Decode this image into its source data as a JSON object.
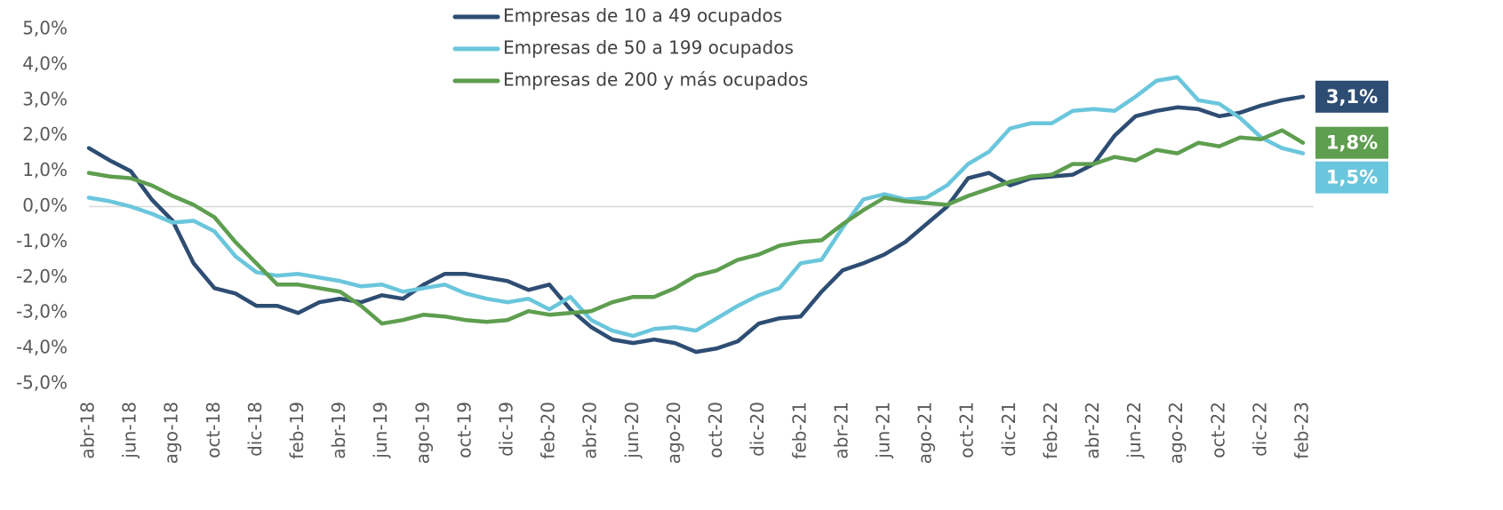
{
  "chart_data": {
    "type": "line",
    "categories": [
      "abr-18",
      null,
      "jun-18",
      null,
      "ago-18",
      null,
      "oct-18",
      null,
      "dic-18",
      null,
      "feb-19",
      null,
      "abr-19",
      null,
      "jun-19",
      null,
      "ago-19",
      null,
      "oct-19",
      null,
      "dic-19",
      null,
      "feb-20",
      null,
      "abr-20",
      null,
      "jun-20",
      null,
      "ago-20",
      null,
      "oct-20",
      null,
      "dic-20",
      null,
      "feb-21",
      null,
      "abr-21",
      null,
      "jun-21",
      null,
      "ago-21",
      null,
      "oct-21",
      null,
      "dic-21",
      null,
      "feb-22",
      null,
      "abr-22",
      null,
      "jun-22",
      null,
      "ago-22",
      null,
      "oct-22",
      null,
      "dic-22",
      null,
      "feb-23"
    ],
    "series": [
      {
        "name": "Empresas de 10 a 49 ocupados",
        "color": "#2e4d73",
        "values": [
          1.65,
          1.3,
          1.0,
          0.2,
          -0.4,
          -1.6,
          -2.3,
          -2.45,
          -2.8,
          -2.8,
          -3.0,
          -2.7,
          -2.6,
          -2.7,
          -2.5,
          -2.6,
          -2.2,
          -1.9,
          -1.9,
          -2.0,
          -2.1,
          -2.35,
          -2.2,
          -2.9,
          -3.4,
          -3.75,
          -3.85,
          -3.75,
          -3.85,
          -4.1,
          -4.0,
          -3.8,
          -3.3,
          -3.15,
          -3.1,
          -2.4,
          -1.8,
          -1.6,
          -1.35,
          -1.0,
          -0.5,
          0.0,
          0.8,
          0.95,
          0.6,
          0.8,
          0.85,
          0.9,
          1.2,
          2.0,
          2.55,
          2.7,
          2.8,
          2.75,
          2.55,
          2.65,
          2.85,
          3.0,
          3.1
        ],
        "value_labels": [
          null,
          null,
          null,
          null,
          null,
          null,
          null,
          null,
          null,
          null,
          null,
          null,
          null,
          null,
          null,
          null,
          null,
          null,
          null,
          null,
          null,
          null,
          null,
          null,
          null,
          null,
          null,
          null,
          null,
          null,
          null,
          null,
          null,
          null,
          null,
          null,
          null,
          null,
          null,
          null,
          null,
          null,
          null,
          null,
          null,
          null,
          null,
          null,
          null,
          null,
          null,
          null,
          null,
          null,
          null,
          null,
          null,
          null,
          "3,1%"
        ]
      },
      {
        "name": "Empresas de 50 a 199 ocupados",
        "color": "#6ac6dc",
        "values": [
          0.25,
          0.15,
          0.0,
          -0.2,
          -0.45,
          -0.4,
          -0.7,
          -1.4,
          -1.85,
          -1.95,
          -1.9,
          -2.0,
          -2.1,
          -2.25,
          -2.2,
          -2.4,
          -2.3,
          -2.2,
          -2.45,
          -2.6,
          -2.7,
          -2.6,
          -2.9,
          -2.55,
          -3.2,
          -3.5,
          -3.65,
          -3.45,
          -3.4,
          -3.5,
          -3.15,
          -2.8,
          -2.5,
          -2.3,
          -1.6,
          -1.5,
          -0.6,
          0.2,
          0.35,
          0.2,
          0.25,
          0.6,
          1.2,
          1.55,
          2.2,
          2.35,
          2.35,
          2.7,
          2.75,
          2.7,
          3.1,
          3.55,
          3.65,
          3.0,
          2.9,
          2.5,
          1.95,
          1.65,
          1.5
        ],
        "value_labels": [
          null,
          null,
          null,
          null,
          null,
          null,
          null,
          null,
          null,
          null,
          null,
          null,
          null,
          null,
          null,
          null,
          null,
          null,
          null,
          null,
          null,
          null,
          null,
          null,
          null,
          null,
          null,
          null,
          null,
          null,
          null,
          null,
          null,
          null,
          null,
          null,
          null,
          null,
          null,
          null,
          null,
          null,
          null,
          null,
          null,
          null,
          null,
          null,
          null,
          null,
          null,
          null,
          null,
          null,
          null,
          null,
          null,
          null,
          "1,5%"
        ]
      },
      {
        "name": "Empresas de 200 y más ocupados",
        "color": "#5e9e4f",
        "values": [
          0.95,
          0.85,
          0.8,
          0.6,
          0.3,
          0.05,
          -0.3,
          -1.0,
          -1.6,
          -2.2,
          -2.2,
          -2.3,
          -2.4,
          -2.8,
          -3.3,
          -3.2,
          -3.05,
          -3.1,
          -3.2,
          -3.25,
          -3.2,
          -2.95,
          -3.05,
          -3.0,
          -2.95,
          -2.7,
          -2.55,
          -2.55,
          -2.3,
          -1.95,
          -1.8,
          -1.5,
          -1.35,
          -1.1,
          -1.0,
          -0.95,
          -0.5,
          -0.1,
          0.25,
          0.15,
          0.1,
          0.05,
          0.3,
          0.5,
          0.7,
          0.85,
          0.9,
          1.2,
          1.2,
          1.4,
          1.3,
          1.6,
          1.5,
          1.8,
          1.7,
          1.95,
          1.9,
          2.15,
          1.8
        ],
        "value_labels": [
          null,
          null,
          null,
          null,
          null,
          null,
          null,
          null,
          null,
          null,
          null,
          null,
          null,
          null,
          null,
          null,
          null,
          null,
          null,
          null,
          null,
          null,
          null,
          null,
          null,
          null,
          null,
          null,
          null,
          null,
          null,
          null,
          null,
          null,
          null,
          null,
          null,
          null,
          null,
          null,
          null,
          null,
          null,
          null,
          null,
          null,
          null,
          null,
          null,
          null,
          null,
          null,
          null,
          null,
          null,
          null,
          null,
          null,
          "1,8%"
        ]
      }
    ],
    "ylim": [
      -5,
      5
    ],
    "yticks": [
      {
        "value": 5,
        "label": "5,0%"
      },
      {
        "value": 4,
        "label": "4,0%"
      },
      {
        "value": 3,
        "label": "3,0%"
      },
      {
        "value": 2,
        "label": "2,0%"
      },
      {
        "value": 1,
        "label": "1,0%"
      },
      {
        "value": 0,
        "label": "0,0%"
      },
      {
        "value": -1,
        "label": "-1,0%"
      },
      {
        "value": -2,
        "label": "-2,0%"
      },
      {
        "value": -3,
        "label": "-3,0%"
      },
      {
        "value": -4,
        "label": "-4,0%"
      },
      {
        "value": -5,
        "label": "-5,0%"
      }
    ],
    "grid": false
  }
}
